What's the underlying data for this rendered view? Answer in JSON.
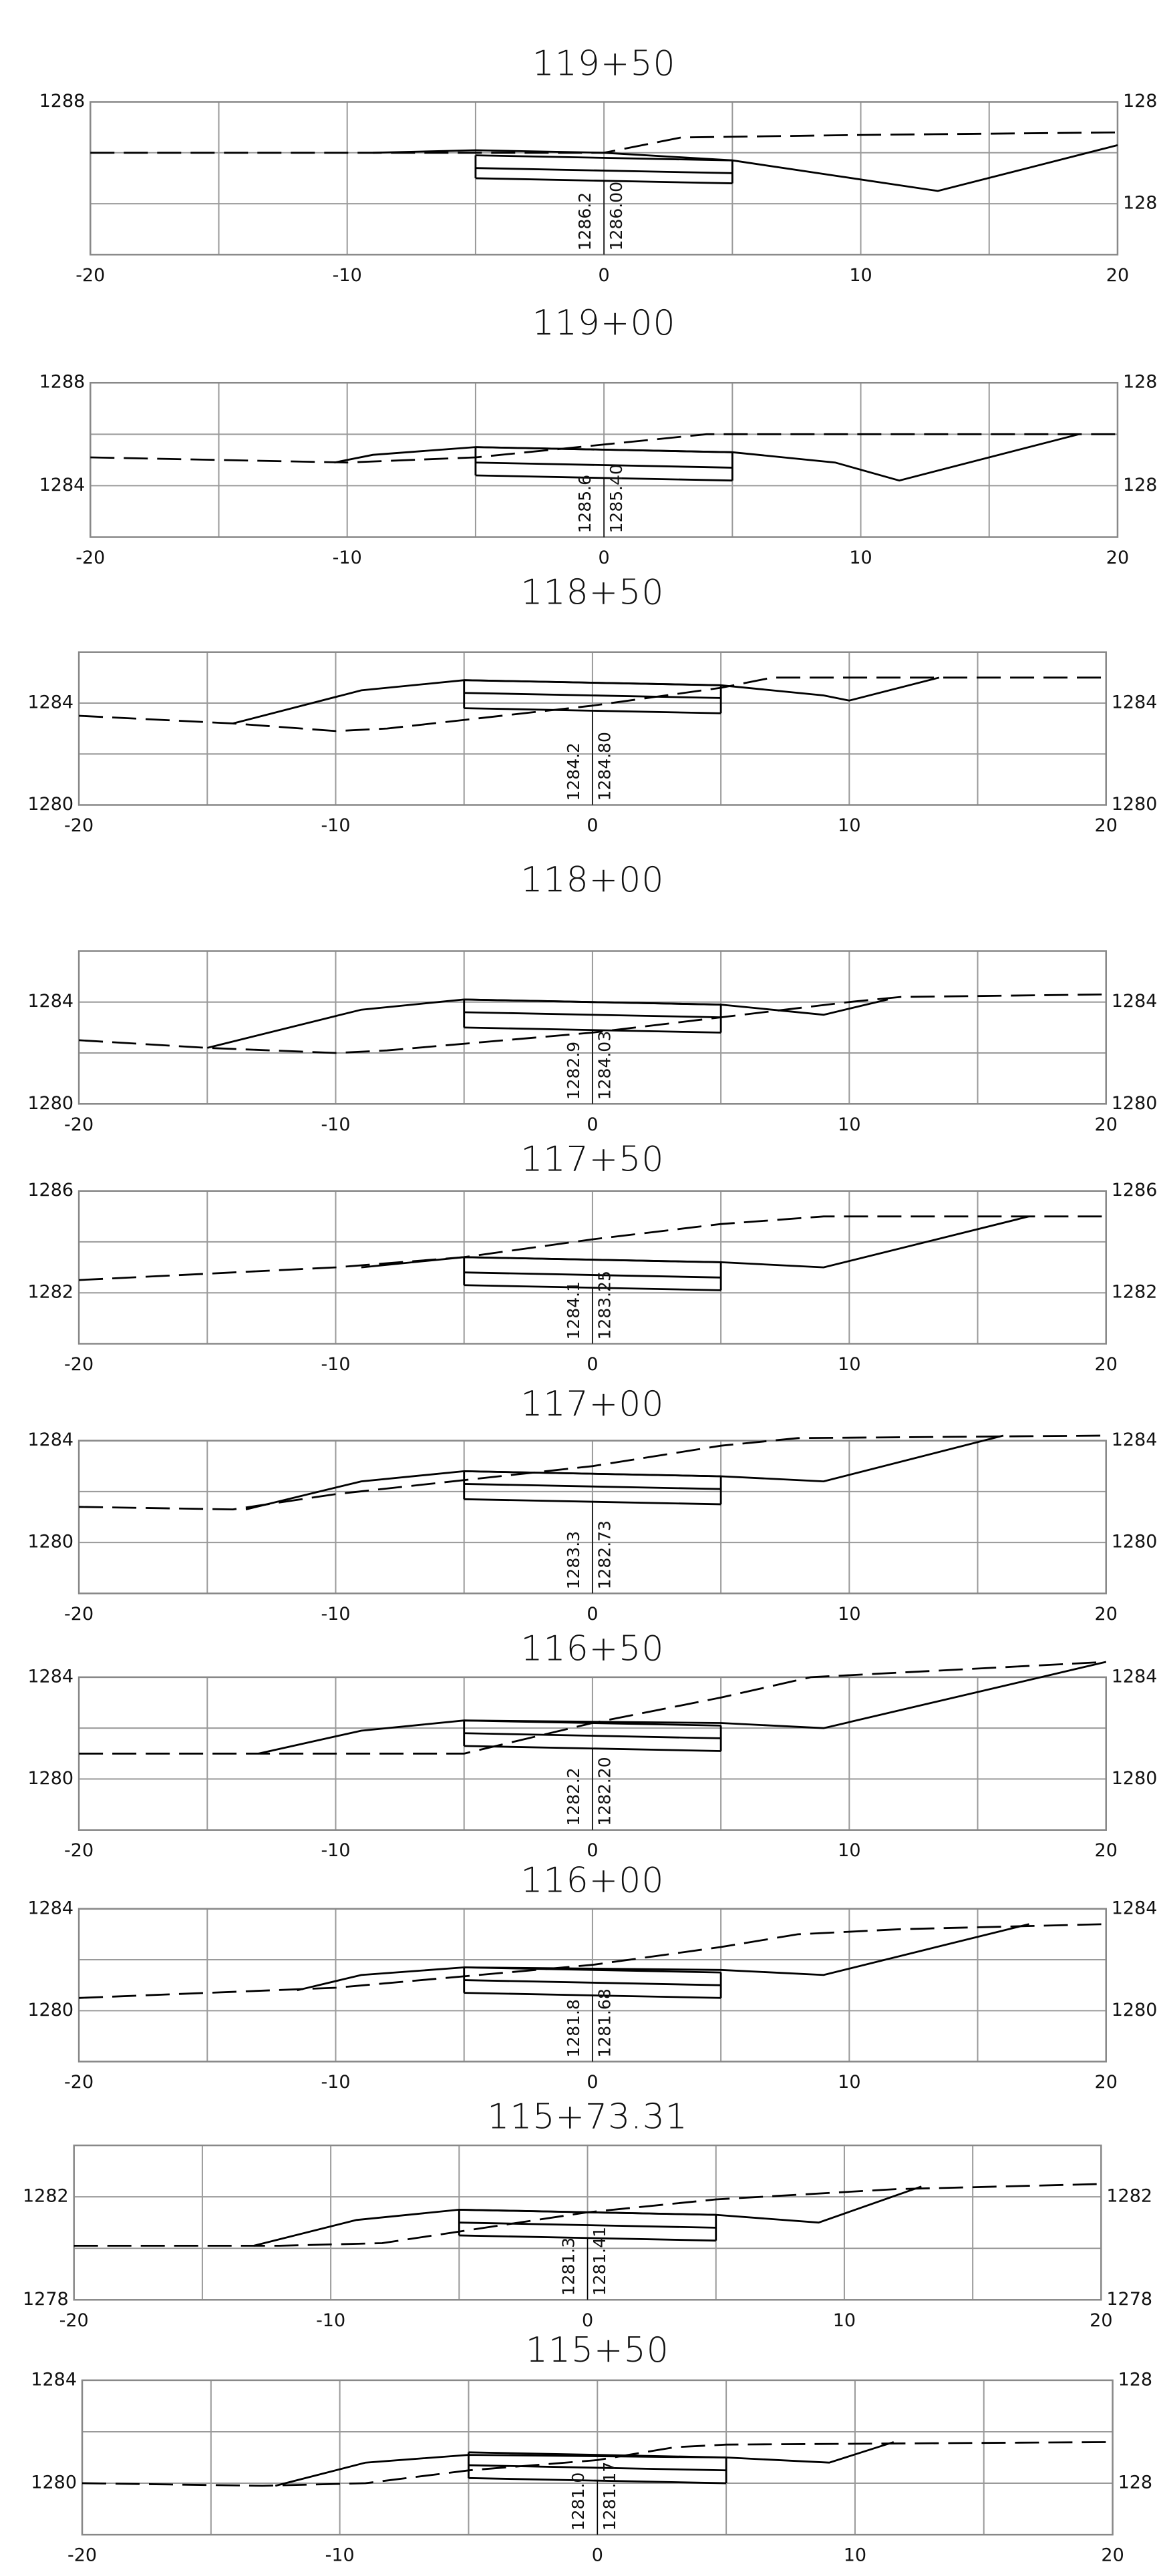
{
  "chart_data": [
    {
      "type": "line",
      "title": "119+50",
      "xlim": [
        -20,
        20
      ],
      "xticks": [
        -20,
        -10,
        0,
        10,
        20
      ],
      "xminor": [
        -15,
        -5,
        5,
        15
      ],
      "ylim": [
        1282,
        1288
      ],
      "yticks": [
        1288
      ],
      "yminor": [
        1284,
        1286
      ],
      "y2lim": [
        1282,
        1288
      ],
      "y2ticks": [
        {
          "value": 1288,
          "label": "128"
        },
        {
          "value": 1284,
          "label": "128"
        }
      ],
      "grid": true,
      "series": [
        {
          "x": [
            -20,
            -9,
            0,
            3,
            10,
            20
          ],
          "values": [
            1286,
            1286,
            1286,
            1286.6,
            1286.7,
            1286.8
          ],
          "color": "#000000",
          "dash": true
        },
        {
          "x": [
            -9,
            -5,
            0,
            5,
            9,
            13,
            20
          ],
          "values": [
            1286,
            1286.1,
            1286,
            1285.7,
            1285.1,
            1284.5,
            1286.3
          ],
          "color": "#000000",
          "dash": false
        }
      ],
      "template": {
        "x": [
          -5,
          5
        ],
        "top": [
          1285.9,
          1285.7
        ],
        "mid": [
          1285.4,
          1285.2
        ],
        "bottom": [
          1285.0,
          1284.8
        ]
      },
      "annotations": [
        "1286.2",
        "1286.00"
      ]
    },
    {
      "type": "line",
      "title": "119+00",
      "xlim": [
        -20,
        20
      ],
      "xticks": [
        -20,
        -10,
        0,
        10,
        20
      ],
      "xminor": [
        -15,
        -5,
        5,
        15
      ],
      "ylim": [
        1282,
        1288
      ],
      "yticks": [
        1288,
        1284
      ],
      "yminor": [
        1286
      ],
      "y2lim": [
        1282,
        1288
      ],
      "y2ticks": [
        {
          "value": 1288,
          "label": "128"
        },
        {
          "value": 1284,
          "label": "128"
        }
      ],
      "grid": true,
      "series": [
        {
          "x": [
            -20,
            -10,
            -5,
            4,
            20
          ],
          "values": [
            1285.1,
            1284.9,
            1285.1,
            1286,
            1286
          ],
          "color": "#000000",
          "dash": true
        },
        {
          "x": [
            -10.5,
            -9,
            -5,
            5,
            9,
            11.5,
            18.5
          ],
          "values": [
            1284.9,
            1285.2,
            1285.5,
            1285.3,
            1284.9,
            1284.2,
            1286
          ],
          "color": "#000000",
          "dash": false
        }
      ],
      "template": {
        "x": [
          -5,
          5
        ],
        "top": [
          1285.5,
          1285.3
        ],
        "mid": [
          1284.9,
          1284.7
        ],
        "bottom": [
          1284.4,
          1284.2
        ]
      },
      "annotations": [
        "1285.6",
        "1285.40"
      ]
    },
    {
      "type": "line",
      "title": "118+50",
      "xlim": [
        -20,
        20
      ],
      "xticks": [
        -20,
        -10,
        0,
        10,
        20
      ],
      "xminor": [
        -15,
        -5,
        5,
        15
      ],
      "ylim": [
        1280,
        1286
      ],
      "yticks": [
        1284,
        1280
      ],
      "yminor": [
        1282
      ],
      "y2lim": [
        1280,
        1286
      ],
      "y2ticks": [
        1284,
        1280
      ],
      "grid": true,
      "series": [
        {
          "x": [
            -20,
            -14,
            -10,
            -8,
            0,
            5,
            7,
            20
          ],
          "values": [
            1283.5,
            1283.2,
            1282.9,
            1283,
            1283.9,
            1284.6,
            1285,
            1285
          ],
          "color": "#000000",
          "dash": true
        },
        {
          "x": [
            -14,
            -9,
            -5,
            5,
            9,
            10,
            13.5
          ],
          "values": [
            1283.2,
            1284.5,
            1284.9,
            1284.7,
            1284.3,
            1284.1,
            1285
          ],
          "color": "#000000",
          "dash": false
        }
      ],
      "template": {
        "x": [
          -5,
          5
        ],
        "top": [
          1284.9,
          1284.7
        ],
        "mid": [
          1284.4,
          1284.2
        ],
        "bottom": [
          1283.8,
          1283.6
        ]
      },
      "annotations": [
        "1284.2",
        "1284.80"
      ]
    },
    {
      "type": "line",
      "title": "118+00",
      "xlim": [
        -20,
        20
      ],
      "xticks": [
        -20,
        -10,
        0,
        10,
        20
      ],
      "xminor": [
        -15,
        -5,
        5,
        15
      ],
      "ylim": [
        1280,
        1286
      ],
      "yticks": [
        1284,
        1280
      ],
      "yminor": [
        1282
      ],
      "y2lim": [
        1280,
        1286
      ],
      "y2ticks": [
        1284,
        1280
      ],
      "grid": true,
      "series": [
        {
          "x": [
            -20,
            -15,
            -10,
            -8,
            0,
            5,
            10,
            12,
            20
          ],
          "values": [
            1282.5,
            1282.2,
            1282,
            1282.1,
            1282.8,
            1283.4,
            1284,
            1284.2,
            1284.3
          ],
          "color": "#000000",
          "dash": true
        },
        {
          "x": [
            -15,
            -9,
            -5,
            5,
            9,
            11.5
          ],
          "values": [
            1282.2,
            1283.7,
            1284.1,
            1283.9,
            1283.5,
            1284.1
          ],
          "color": "#000000",
          "dash": false
        }
      ],
      "template": {
        "x": [
          -5,
          5
        ],
        "top": [
          1284.1,
          1283.9
        ],
        "mid": [
          1283.6,
          1283.4
        ],
        "bottom": [
          1283.0,
          1282.8
        ]
      },
      "annotations": [
        "1282.9",
        "1284.03"
      ]
    },
    {
      "type": "line",
      "title": "117+50",
      "xlim": [
        -20,
        20
      ],
      "xticks": [
        -20,
        -10,
        0,
        10,
        20
      ],
      "xminor": [
        -15,
        -5,
        5,
        15
      ],
      "ylim": [
        1280,
        1286
      ],
      "yticks": [
        1286,
        1282
      ],
      "yminor": [
        1284
      ],
      "y2lim": [
        1280,
        1286
      ],
      "y2ticks": [
        1286,
        1282
      ],
      "grid": true,
      "series": [
        {
          "x": [
            -20,
            -10,
            -5,
            0,
            5,
            9,
            20
          ],
          "values": [
            1282.5,
            1283,
            1283.4,
            1284.1,
            1284.7,
            1285,
            1285
          ],
          "color": "#000000",
          "dash": true
        },
        {
          "x": [
            -9,
            -5,
            5,
            9,
            17
          ],
          "values": [
            1283,
            1283.4,
            1283.2,
            1283,
            1285
          ],
          "color": "#000000",
          "dash": false
        }
      ],
      "template": {
        "x": [
          -5,
          5
        ],
        "top": [
          1283.4,
          1283.2
        ],
        "mid": [
          1282.8,
          1282.6
        ],
        "bottom": [
          1282.3,
          1282.1
        ]
      },
      "annotations": [
        "1284.1",
        "1283.25"
      ]
    },
    {
      "type": "line",
      "title": "117+00",
      "xlim": [
        -20,
        20
      ],
      "xticks": [
        -20,
        -10,
        0,
        10,
        20
      ],
      "xminor": [
        -15,
        -5,
        5,
        15
      ],
      "ylim": [
        1278,
        1284
      ],
      "yticks": [
        1284,
        1280
      ],
      "yminor": [
        1282
      ],
      "y2lim": [
        1278,
        1284
      ],
      "y2ticks": [
        1284,
        1280
      ],
      "grid": true,
      "series": [
        {
          "x": [
            -20,
            -14,
            -10,
            0,
            5,
            8,
            20
          ],
          "values": [
            1281.4,
            1281.3,
            1281.9,
            1283,
            1283.8,
            1284.1,
            1284.2
          ],
          "color": "#000000",
          "dash": true
        },
        {
          "x": [
            -13.5,
            -9,
            -5,
            5,
            9,
            16
          ],
          "values": [
            1281.3,
            1282.4,
            1282.8,
            1282.6,
            1282.4,
            1284.2
          ],
          "color": "#000000",
          "dash": false
        }
      ],
      "template": {
        "x": [
          -5,
          5
        ],
        "top": [
          1282.8,
          1282.6
        ],
        "mid": [
          1282.3,
          1282.1
        ],
        "bottom": [
          1281.7,
          1281.5
        ]
      },
      "annotations": [
        "1283.3",
        "1282.73"
      ]
    },
    {
      "type": "line",
      "title": "116+50",
      "xlim": [
        -20,
        20
      ],
      "xticks": [
        -20,
        -10,
        0,
        10,
        20
      ],
      "xminor": [
        -15,
        -5,
        5,
        15
      ],
      "ylim": [
        1278,
        1284
      ],
      "yticks": [
        1284,
        1280
      ],
      "yminor": [
        1282
      ],
      "y2lim": [
        1278,
        1284
      ],
      "y2ticks": [
        1284,
        1280
      ],
      "grid": true,
      "series": [
        {
          "x": [
            -20,
            -13,
            -5,
            0,
            5,
            8.5,
            20
          ],
          "values": [
            1281,
            1281,
            1281,
            1282.2,
            1283.2,
            1284,
            1284.6
          ],
          "color": "#000000",
          "dash": true
        },
        {
          "x": [
            -13,
            -9,
            -5,
            5,
            9,
            20
          ],
          "values": [
            1281,
            1281.9,
            1282.3,
            1282.2,
            1282,
            1284.6
          ],
          "color": "#000000",
          "dash": false
        }
      ],
      "template": {
        "x": [
          -5,
          5
        ],
        "top": [
          1282.3,
          1282.1
        ],
        "mid": [
          1281.8,
          1281.6
        ],
        "bottom": [
          1281.3,
          1281.1
        ]
      },
      "annotations": [
        "1282.2",
        "1282.20"
      ]
    },
    {
      "type": "line",
      "title": "116+00",
      "xlim": [
        -20,
        20
      ],
      "xticks": [
        -20,
        -10,
        0,
        10,
        20
      ],
      "xminor": [
        -15,
        -5,
        5,
        15
      ],
      "ylim": [
        1278,
        1284
      ],
      "yticks": [
        1284,
        1280
      ],
      "yminor": [
        1282
      ],
      "y2lim": [
        1278,
        1284
      ],
      "y2ticks": [
        1284,
        1280
      ],
      "grid": true,
      "series": [
        {
          "x": [
            -20,
            -10,
            0,
            5,
            8,
            12,
            20
          ],
          "values": [
            1280.5,
            1280.9,
            1281.8,
            1282.5,
            1283,
            1283.2,
            1283.4
          ],
          "color": "#000000",
          "dash": true
        },
        {
          "x": [
            -11.5,
            -9,
            -5,
            5,
            9,
            17
          ],
          "values": [
            1280.8,
            1281.4,
            1281.7,
            1281.6,
            1281.4,
            1283.4
          ],
          "color": "#000000",
          "dash": false
        }
      ],
      "template": {
        "x": [
          -5,
          5
        ],
        "top": [
          1281.7,
          1281.5
        ],
        "mid": [
          1281.2,
          1281.0
        ],
        "bottom": [
          1280.7,
          1280.5
        ]
      },
      "annotations": [
        "1281.8",
        "1281.68"
      ]
    },
    {
      "type": "line",
      "title": "115+73.31",
      "xlim": [
        -20,
        20
      ],
      "xticks": [
        -20,
        -10,
        0,
        10,
        20
      ],
      "xminor": [
        -15,
        -5,
        5,
        15
      ],
      "ylim": [
        1278,
        1284
      ],
      "yticks": [
        1282,
        1278
      ],
      "yminor": [
        1280
      ],
      "y2lim": [
        1278,
        1284
      ],
      "y2ticks": [
        1282,
        1278
      ],
      "grid": true,
      "series": [
        {
          "x": [
            -20,
            -12,
            -8,
            0,
            5,
            12,
            20
          ],
          "values": [
            1280.1,
            1280.1,
            1280.2,
            1281.4,
            1281.9,
            1282.3,
            1282.5
          ],
          "color": "#000000",
          "dash": true
        },
        {
          "x": [
            -13,
            -9,
            -5,
            5,
            9,
            13
          ],
          "values": [
            1280.1,
            1281.1,
            1281.5,
            1281.3,
            1281,
            1282.4
          ],
          "color": "#000000",
          "dash": false
        }
      ],
      "template": {
        "x": [
          -5,
          5
        ],
        "top": [
          1281.5,
          1281.3
        ],
        "mid": [
          1281.0,
          1280.8
        ],
        "bottom": [
          1280.5,
          1280.3
        ]
      },
      "annotations": [
        "1281.3",
        "1281.41"
      ]
    },
    {
      "type": "line",
      "title": "115+50",
      "xlim": [
        -20,
        20
      ],
      "xticks": [
        -20,
        -10,
        0,
        10,
        20
      ],
      "xminor": [
        -15,
        -5,
        5,
        15
      ],
      "ylim": [
        1278,
        1284
      ],
      "yticks": [
        1284,
        1280
      ],
      "yminor": [
        1282
      ],
      "y2lim": [
        1278,
        1284
      ],
      "y2ticks": [
        {
          "value": 1284,
          "label": "128"
        },
        {
          "value": 1280,
          "label": "128"
        }
      ],
      "grid": true,
      "series": [
        {
          "x": [
            -20,
            -13,
            -9,
            -5,
            0,
            3,
            5,
            20
          ],
          "values": [
            1280,
            1279.9,
            1280,
            1280.5,
            1280.9,
            1281.4,
            1281.5,
            1281.6
          ],
          "color": "#000000",
          "dash": true
        },
        {
          "x": [
            -12.5,
            -9,
            -5,
            5,
            9,
            11.5
          ],
          "values": [
            1279.9,
            1280.8,
            1281.1,
            1281,
            1280.8,
            1281.6
          ],
          "color": "#000000",
          "dash": false
        }
      ],
      "template": {
        "x": [
          -5,
          5
        ],
        "top": [
          1281.2,
          1281.0
        ],
        "mid": [
          1280.7,
          1280.5
        ],
        "bottom": [
          1280.2,
          1280.0
        ]
      },
      "annotations": [
        "1281.0",
        "1281.17"
      ]
    }
  ]
}
